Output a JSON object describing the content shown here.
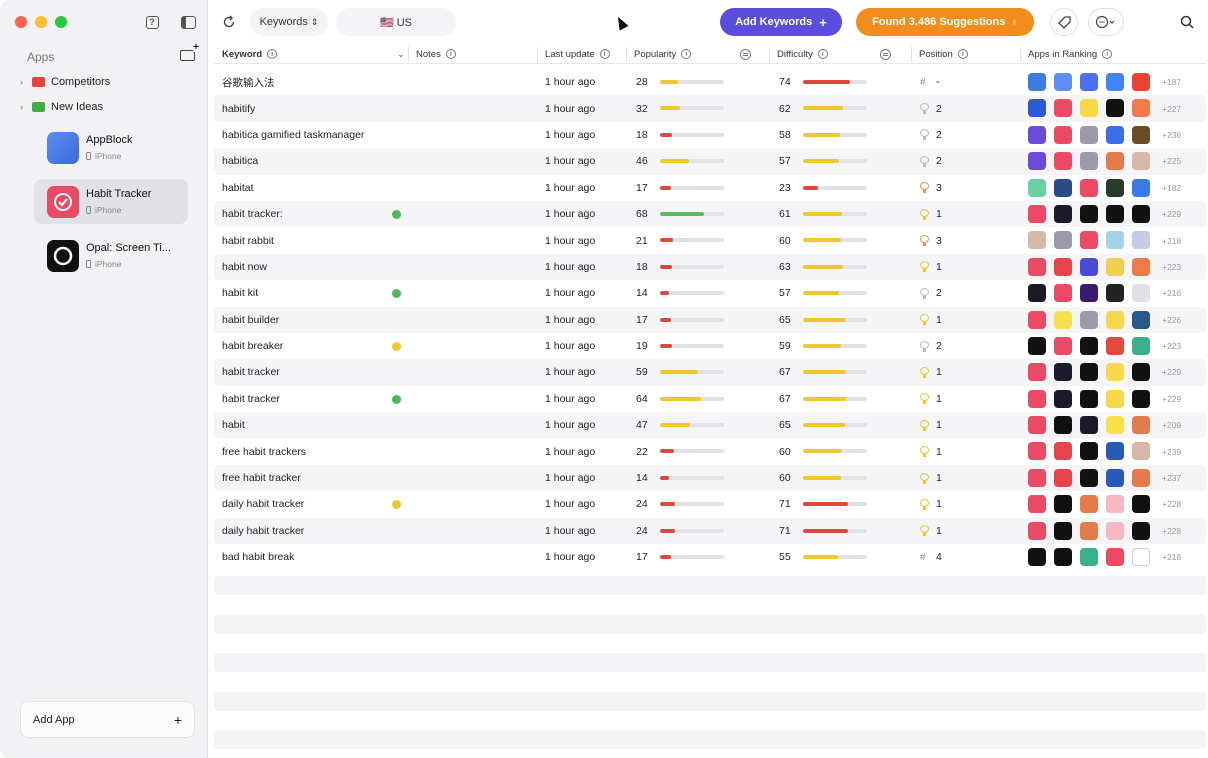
{
  "sidebar": {
    "title": "Apps",
    "groups": [
      {
        "label": "Competitors",
        "color": "#e8433b"
      },
      {
        "label": "New Ideas",
        "color": "#3cb043"
      }
    ],
    "apps": [
      {
        "name": "AppBlock",
        "platform": "iPhone",
        "color": "#4a7bd8",
        "selected": false
      },
      {
        "name": "Habit Tracker",
        "platform": "iPhone",
        "color": "#ea4a63",
        "selected": true
      },
      {
        "name": "Opal: Screen Ti...",
        "platform": "iPhone",
        "color": "#111111",
        "selected": false
      }
    ],
    "add_app_label": "Add App"
  },
  "toolbar": {
    "mode_label": "Keywords",
    "country_label": "🇺🇸 US",
    "add_keywords_label": "Add Keywords",
    "suggestions_label": "Found 3.486 Suggestions"
  },
  "columns": {
    "keyword": "Keyword",
    "notes": "Notes",
    "last_update": "Last update",
    "popularity": "Popularity",
    "difficulty": "Difficulty",
    "position": "Position",
    "apps": "Apps in Ranking"
  },
  "colors": {
    "red": "#e0463c",
    "yellow": "#f2c62e",
    "green": "#5dbb63",
    "dot_green": "#4cb85a",
    "dot_yellow": "#f2c62e"
  },
  "rows": [
    {
      "keyword": "谷歌输入法",
      "note": "",
      "update": "1 hour ago",
      "pop": 28,
      "diff": 74,
      "pos_icon": "hash",
      "pos": "-",
      "more": "+187",
      "apps": [
        "#3d7be0",
        "#5b8ef0",
        "#4d6ff5",
        "#4285f4",
        "#ea4335"
      ]
    },
    {
      "keyword": "habitify",
      "note": "",
      "update": "1 hour ago",
      "pop": 32,
      "diff": 62,
      "pos_icon": "medal",
      "pos": "2",
      "more": "+227",
      "apps": [
        "#2a59d6",
        "#ea4a63",
        "#f7d84a",
        "#111111",
        "#f07a4a"
      ]
    },
    {
      "keyword": "habitica gamified taskmanager",
      "note": "",
      "update": "1 hour ago",
      "pop": 18,
      "diff": 58,
      "pos_icon": "medal",
      "pos": "2",
      "more": "+236",
      "apps": [
        "#6a4cd8",
        "#ea4a63",
        "#9a9aa8",
        "#3a6ee8",
        "#6b4a2a"
      ]
    },
    {
      "keyword": "habitica",
      "note": "",
      "update": "1 hour ago",
      "pop": 46,
      "diff": 57,
      "pos_icon": "medal",
      "pos": "2",
      "more": "+225",
      "apps": [
        "#6a4cd8",
        "#ea4a63",
        "#9a9aa8",
        "#e57b4a",
        "#d8b8a8"
      ]
    },
    {
      "keyword": "habitat",
      "note": "",
      "update": "1 hour ago",
      "pop": 17,
      "diff": 23,
      "pos_icon": "medal",
      "pos": "3",
      "more": "+182",
      "apps": [
        "#6bd0a8",
        "#2a4a8a",
        "#ea4a63",
        "#2a3a2a",
        "#3a7be8"
      ]
    },
    {
      "keyword": "habit tracker:",
      "note": "green",
      "update": "1 hour ago",
      "pop": 68,
      "diff": 61,
      "pos_icon": "medal",
      "pos": "1",
      "more": "+229",
      "apps": [
        "#ea4a63",
        "#1a1a2a",
        "#111111",
        "#111111",
        "#111111"
      ]
    },
    {
      "keyword": "habit rabbit",
      "note": "",
      "update": "1 hour ago",
      "pop": 21,
      "diff": 60,
      "pos_icon": "medal",
      "pos": "3",
      "more": "+218",
      "apps": [
        "#d8b8a8",
        "#9a9aa8",
        "#ea4a63",
        "#a8d0e8",
        "#c8c8e8"
      ]
    },
    {
      "keyword": "habit now",
      "note": "",
      "update": "1 hour ago",
      "pop": 18,
      "diff": 63,
      "pos_icon": "medal",
      "pos": "1",
      "more": "+223",
      "apps": [
        "#ea4a63",
        "#e8424a",
        "#4a4ad8",
        "#f0d04a",
        "#f07a4a"
      ]
    },
    {
      "keyword": "habit kit",
      "note": "green",
      "update": "1 hour ago",
      "pop": 14,
      "diff": 57,
      "pos_icon": "medal",
      "pos": "2",
      "more": "+216",
      "apps": [
        "#1a1a2a",
        "#ea4a63",
        "#3a1a6a",
        "#222222",
        "#e0e0e8"
      ]
    },
    {
      "keyword": "habit builder",
      "note": "",
      "update": "1 hour ago",
      "pop": 17,
      "diff": 65,
      "pos_icon": "medal",
      "pos": "1",
      "more": "+226",
      "apps": [
        "#ea4a63",
        "#f7e04a",
        "#9a9aa8",
        "#f7d84a",
        "#2a5a8a"
      ]
    },
    {
      "keyword": "habit breaker",
      "note": "yellow",
      "update": "1 hour ago",
      "pop": 19,
      "diff": 59,
      "pos_icon": "medal",
      "pos": "2",
      "more": "+223",
      "apps": [
        "#111111",
        "#ea4a63",
        "#111111",
        "#e04a3a",
        "#3ab08a"
      ]
    },
    {
      "keyword": "habit  tracker",
      "note": "",
      "update": "1 hour ago",
      "pop": 59,
      "diff": 67,
      "pos_icon": "medal",
      "pos": "1",
      "more": "+229",
      "apps": [
        "#ea4a63",
        "#1a1a2a",
        "#111111",
        "#f7d84a",
        "#111111"
      ]
    },
    {
      "keyword": "habit   tracker",
      "note": "green",
      "update": "1 hour ago",
      "pop": 64,
      "diff": 67,
      "pos_icon": "medal",
      "pos": "1",
      "more": "+229",
      "apps": [
        "#ea4a63",
        "#1a1a2a",
        "#111111",
        "#f7d84a",
        "#111111"
      ]
    },
    {
      "keyword": "habit",
      "note": "",
      "update": "1 hour ago",
      "pop": 47,
      "diff": 65,
      "pos_icon": "medal",
      "pos": "1",
      "more": "+209",
      "apps": [
        "#ea4a63",
        "#111111",
        "#1a1a2a",
        "#f7e04a",
        "#e57b4a"
      ]
    },
    {
      "keyword": "free habit trackers",
      "note": "",
      "update": "1 hour ago",
      "pop": 22,
      "diff": 60,
      "pos_icon": "medal",
      "pos": "1",
      "more": "+239",
      "apps": [
        "#ea4a63",
        "#e8424a",
        "#111111",
        "#2a5ab8",
        "#d8b8a8"
      ]
    },
    {
      "keyword": "free habit tracker",
      "note": "",
      "update": "1 hour ago",
      "pop": 14,
      "diff": 60,
      "pos_icon": "medal",
      "pos": "1",
      "more": "+237",
      "apps": [
        "#ea4a63",
        "#e8424a",
        "#111111",
        "#2a5ab8",
        "#e57b4a"
      ]
    },
    {
      "keyword": "daily habit tracker",
      "note": "yellow",
      "update": "1 hour ago",
      "pop": 24,
      "diff": 71,
      "pos_icon": "medal",
      "pos": "1",
      "more": "+228",
      "apps": [
        "#ea4a63",
        "#111111",
        "#e57b4a",
        "#f5b8c0",
        "#111111"
      ]
    },
    {
      "keyword": "daily habit  tracker",
      "note": "",
      "update": "1 hour ago",
      "pop": 24,
      "diff": 71,
      "pos_icon": "medal",
      "pos": "1",
      "more": "+228",
      "apps": [
        "#ea4a63",
        "#111111",
        "#e57b4a",
        "#f5b8c0",
        "#111111"
      ]
    },
    {
      "keyword": "bad habit break",
      "note": "",
      "update": "1 hour ago",
      "pop": 17,
      "diff": 55,
      "pos_icon": "hash",
      "pos": "4",
      "more": "+218",
      "apps": [
        "#111111",
        "#111111",
        "#3ab08a",
        "#ea4a63",
        "#ffffff"
      ]
    }
  ]
}
